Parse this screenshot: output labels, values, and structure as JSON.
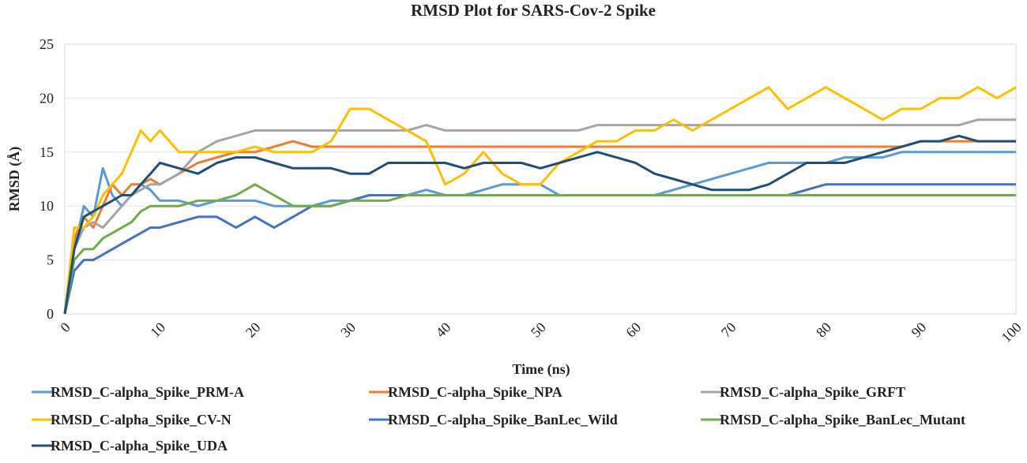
{
  "chart_data": {
    "type": "line",
    "title": "RMSD Plot for SARS-Cov-2 Spike",
    "xlabel": "Time (ns)",
    "ylabel": "RMSD (Å)",
    "xlim": [
      0,
      100
    ],
    "ylim": [
      0,
      25
    ],
    "xticks": [
      "0",
      "10",
      "20",
      "30",
      "40",
      "50",
      "60",
      "70",
      "80",
      "90",
      "100"
    ],
    "yticks": [
      "0",
      "5",
      "10",
      "15",
      "20",
      "25"
    ],
    "grid": "horizontal",
    "legend_position": "bottom",
    "x": [
      0,
      1,
      2,
      3,
      4,
      5,
      6,
      7,
      8,
      9,
      10,
      12,
      14,
      16,
      18,
      20,
      22,
      24,
      26,
      28,
      30,
      32,
      34,
      36,
      38,
      40,
      42,
      44,
      46,
      48,
      50,
      52,
      54,
      56,
      58,
      60,
      62,
      64,
      66,
      68,
      70,
      72,
      74,
      76,
      78,
      80,
      82,
      84,
      86,
      88,
      90,
      92,
      94,
      96,
      98,
      100
    ],
    "series": [
      {
        "name": "RMSD_C-alpha_Spike_PRM-A",
        "color": "#5b9bd5",
        "values": [
          0,
          6,
          10,
          9,
          13.5,
          11,
          10,
          11,
          12,
          11.5,
          10.5,
          10.5,
          10,
          10.5,
          10.5,
          10.5,
          10,
          10,
          10,
          10.5,
          10.5,
          11,
          11,
          11,
          11.5,
          11,
          11,
          11.5,
          12,
          12,
          12,
          11,
          11,
          11,
          11,
          11,
          11,
          11.5,
          12,
          12.5,
          13,
          13.5,
          14,
          14,
          14,
          14,
          14.5,
          14.5,
          14.5,
          15,
          15,
          15,
          15,
          15,
          15,
          15
        ]
      },
      {
        "name": "RMSD_C-alpha_Spike_NPA",
        "color": "#ed7d31",
        "values": [
          0,
          7,
          9,
          8,
          10,
          12,
          11,
          12,
          12,
          12.5,
          12,
          13,
          14,
          14.5,
          15,
          15,
          15.5,
          16,
          15.5,
          15.5,
          15.5,
          15.5,
          15.5,
          15.5,
          15.5,
          15.5,
          15.5,
          15.5,
          15.5,
          15.5,
          15.5,
          15.5,
          15.5,
          15.5,
          15.5,
          15.5,
          15.5,
          15.5,
          15.5,
          15.5,
          15.5,
          15.5,
          15.5,
          15.5,
          15.5,
          15.5,
          15.5,
          15.5,
          15.5,
          15.5,
          16,
          16,
          16,
          16,
          16,
          16
        ]
      },
      {
        "name": "RMSD_C-alpha_Spike_GRFT",
        "color": "#a5a5a5",
        "values": [
          0,
          6,
          8,
          8.5,
          8,
          9,
          10,
          11,
          11.5,
          12,
          12,
          13,
          15,
          16,
          16.5,
          17,
          17,
          17,
          17,
          17,
          17,
          17,
          17,
          17,
          17.5,
          17,
          17,
          17,
          17,
          17,
          17,
          17,
          17,
          17.5,
          17.5,
          17.5,
          17.5,
          17.5,
          17.5,
          17.5,
          17.5,
          17.5,
          17.5,
          17.5,
          17.5,
          17.5,
          17.5,
          17.5,
          17.5,
          17.5,
          17.5,
          17.5,
          17.5,
          18,
          18,
          18
        ]
      },
      {
        "name": "RMSD_C-alpha_Spike_CV-N",
        "color": "#ffc000",
        "values": [
          0,
          8,
          8,
          9,
          11,
          12,
          13,
          15,
          17,
          16,
          17,
          15,
          15,
          15,
          15,
          15.5,
          15,
          15,
          15,
          16,
          19,
          19,
          18,
          17,
          16,
          12,
          13,
          15,
          13,
          12,
          12,
          14,
          15,
          16,
          16,
          17,
          17,
          18,
          17,
          18,
          19,
          20,
          21,
          19,
          20,
          21,
          20,
          19,
          18,
          19,
          19,
          20,
          20,
          21,
          20,
          21
        ]
      },
      {
        "name": "RMSD_C-alpha_Spike_BanLec_Wild",
        "color": "#4472c4",
        "values": [
          0,
          4,
          5,
          5,
          5.5,
          6,
          6.5,
          7,
          7.5,
          8,
          8,
          8.5,
          9,
          9,
          8,
          9,
          8,
          9,
          10,
          10,
          10.5,
          11,
          11,
          11,
          11,
          11,
          11,
          11,
          11,
          11,
          11,
          11,
          11,
          11,
          11,
          11,
          11,
          11,
          11,
          11,
          11,
          11,
          11,
          11,
          11.5,
          12,
          12,
          12,
          12,
          12,
          12,
          12,
          12,
          12,
          12,
          12
        ]
      },
      {
        "name": "RMSD_C-alpha_Spike_BanLec_Mutant",
        "color": "#70ad47",
        "values": [
          0,
          5,
          6,
          6,
          7,
          7.5,
          8,
          8.5,
          9.5,
          10,
          10,
          10,
          10.5,
          10.5,
          11,
          12,
          11,
          10,
          10,
          10,
          10.5,
          10.5,
          10.5,
          11,
          11,
          11,
          11,
          11,
          11,
          11,
          11,
          11,
          11,
          11,
          11,
          11,
          11,
          11,
          11,
          11,
          11,
          11,
          11,
          11,
          11,
          11,
          11,
          11,
          11,
          11,
          11,
          11,
          11,
          11,
          11,
          11
        ]
      },
      {
        "name": "RMSD_C-alpha_Spike_UDA",
        "color": "#1f4e79",
        "values": [
          0,
          6,
          9,
          9.5,
          10,
          10.5,
          11,
          11,
          12,
          13,
          14,
          13.5,
          13,
          14,
          14.5,
          14.5,
          14,
          13.5,
          13.5,
          13.5,
          13,
          13,
          14,
          14,
          14,
          14,
          13.5,
          14,
          14,
          14,
          13.5,
          14,
          14.5,
          15,
          14.5,
          14,
          13,
          12.5,
          12,
          11.5,
          11.5,
          11.5,
          12,
          13,
          14,
          14,
          14,
          14.5,
          15,
          15.5,
          16,
          16,
          16.5,
          16,
          16,
          16
        ]
      }
    ]
  }
}
